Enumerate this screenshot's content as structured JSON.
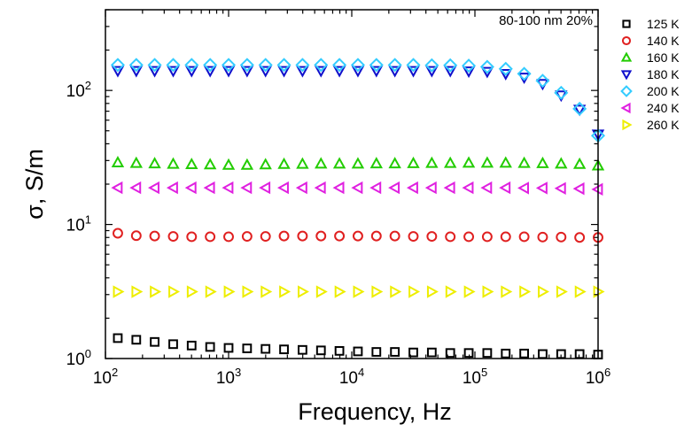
{
  "chart_data": {
    "type": "scatter",
    "title": "",
    "annotation": "80-100 nm 20%",
    "xlabel": "Frequency, Hz",
    "ylabel": "σ, S/m",
    "xscale": "log",
    "yscale": "log",
    "xlim": [
      100,
      1000000
    ],
    "ylim": [
      1,
      400
    ],
    "legend_placement": "right-outside-top",
    "grid": false,
    "x_ticks": [
      {
        "base": "10",
        "exp": "2",
        "value": 100
      },
      {
        "base": "10",
        "exp": "3",
        "value": 1000
      },
      {
        "base": "10",
        "exp": "4",
        "value": 10000
      },
      {
        "base": "10",
        "exp": "5",
        "value": 100000
      },
      {
        "base": "10",
        "exp": "6",
        "value": 1000000
      }
    ],
    "y_ticks": [
      {
        "base": "10",
        "exp": "0",
        "value": 1
      },
      {
        "base": "10",
        "exp": "1",
        "value": 10
      },
      {
        "base": "10",
        "exp": "2",
        "value": 100
      }
    ],
    "x": [
      126,
      178,
      251,
      355,
      501,
      708,
      1000,
      1413,
      1995,
      2818,
      3981,
      5623,
      7943,
      11220,
      15849,
      22387,
      31623,
      44668,
      63096,
      89125,
      125893,
      177828,
      251189,
      354813,
      501187,
      707946,
      1000000
    ],
    "series": [
      {
        "name": "125 K",
        "marker": "square",
        "color": "#000000",
        "values": [
          1.42,
          1.38,
          1.33,
          1.28,
          1.25,
          1.22,
          1.2,
          1.19,
          1.18,
          1.17,
          1.16,
          1.15,
          1.14,
          1.13,
          1.12,
          1.12,
          1.11,
          1.11,
          1.1,
          1.1,
          1.1,
          1.09,
          1.09,
          1.08,
          1.08,
          1.08,
          1.07
        ]
      },
      {
        "name": "140 K",
        "marker": "circle",
        "color": "#e02020",
        "values": [
          8.6,
          8.25,
          8.2,
          8.15,
          8.1,
          8.1,
          8.1,
          8.15,
          8.15,
          8.2,
          8.2,
          8.2,
          8.2,
          8.2,
          8.2,
          8.2,
          8.15,
          8.15,
          8.1,
          8.1,
          8.1,
          8.1,
          8.1,
          8.05,
          8.05,
          8.0,
          8.0
        ]
      },
      {
        "name": "160 K",
        "marker": "triangle-up",
        "color": "#22cc00",
        "values": [
          29,
          28.7,
          28.5,
          28.3,
          28.1,
          28,
          27.8,
          27.8,
          28,
          28.2,
          28.3,
          28.4,
          28.4,
          28.4,
          28.5,
          28.5,
          28.6,
          28.7,
          28.7,
          28.8,
          28.8,
          28.8,
          28.7,
          28.6,
          28.4,
          28.2,
          27.5
        ]
      },
      {
        "name": "180 K",
        "marker": "triangle-down",
        "color": "#1010cc",
        "values": [
          140,
          140,
          140,
          140,
          140,
          140,
          140,
          140,
          140,
          140,
          140,
          140,
          140,
          140,
          140,
          140,
          140,
          140,
          140,
          139,
          138,
          133,
          125,
          112,
          92,
          72,
          47
        ]
      },
      {
        "name": "200 K",
        "marker": "diamond",
        "color": "#33ccff",
        "values": [
          155,
          155,
          155,
          155,
          155,
          155,
          155,
          155,
          155,
          155,
          155,
          155,
          155,
          155,
          155,
          155,
          155,
          154,
          154,
          153,
          150,
          145,
          133,
          118,
          96,
          73,
          46
        ]
      },
      {
        "name": "240 K",
        "marker": "triangle-left",
        "color": "#e020e0",
        "values": [
          18.8,
          18.8,
          18.8,
          18.8,
          18.8,
          18.8,
          18.8,
          18.8,
          18.8,
          18.8,
          18.8,
          18.8,
          18.8,
          18.8,
          18.8,
          18.8,
          18.8,
          18.8,
          18.8,
          18.8,
          18.8,
          18.8,
          18.7,
          18.7,
          18.6,
          18.5,
          18.3
        ]
      },
      {
        "name": "260 K",
        "marker": "triangle-right",
        "color": "#eeee00",
        "values": [
          3.15,
          3.15,
          3.15,
          3.15,
          3.15,
          3.15,
          3.15,
          3.15,
          3.15,
          3.15,
          3.15,
          3.15,
          3.15,
          3.15,
          3.15,
          3.15,
          3.15,
          3.15,
          3.15,
          3.15,
          3.15,
          3.15,
          3.15,
          3.15,
          3.15,
          3.15,
          3.15
        ]
      }
    ]
  }
}
